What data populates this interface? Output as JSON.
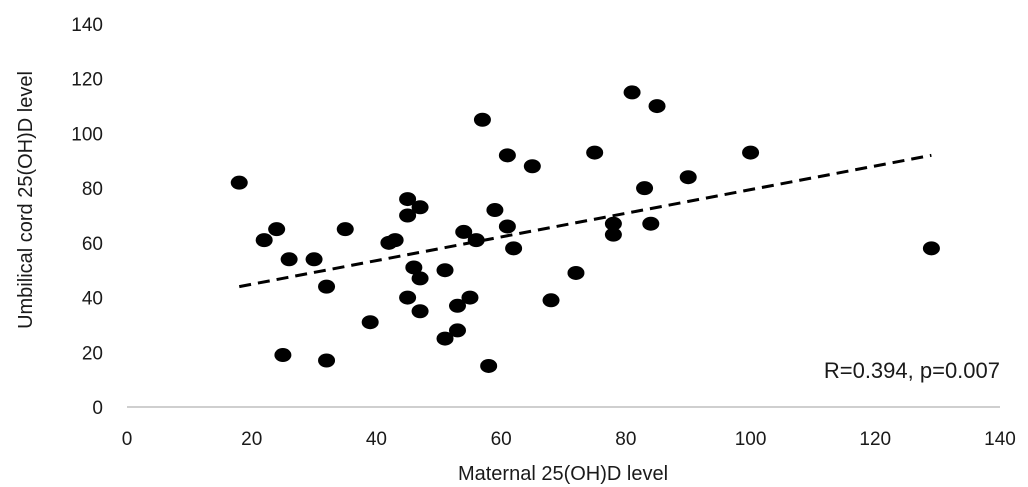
{
  "chart_data": {
    "type": "scatter",
    "title": "",
    "xlabel": "Maternal 25(OH)D level",
    "ylabel": "Umbilical cord 25(OH)D level",
    "xlim": [
      0,
      140
    ],
    "ylim": [
      0,
      140
    ],
    "xticks": [
      0,
      20,
      40,
      60,
      80,
      100,
      120,
      140
    ],
    "yticks": [
      0,
      20,
      40,
      60,
      80,
      100,
      120,
      140
    ],
    "grid": false,
    "annotation": "R=0.394, p=0.007",
    "colors": {
      "points": "#000000",
      "trendline": "#000000",
      "axis": "#bfbfbf"
    },
    "trendline": {
      "style": "dashed",
      "x": [
        18,
        129
      ],
      "y": [
        44,
        92
      ]
    },
    "series": [
      {
        "x": [
          18,
          22,
          24,
          25,
          26,
          30,
          32,
          32,
          35,
          39,
          42,
          43,
          45,
          45,
          45,
          46,
          47,
          47,
          47,
          51,
          51,
          53,
          53,
          54,
          55,
          56,
          57,
          58,
          59,
          61,
          61,
          62,
          65,
          68,
          72,
          75,
          78,
          78,
          81,
          83,
          84,
          85,
          90,
          100,
          129
        ],
        "y": [
          82,
          61,
          65,
          19,
          54,
          54,
          44,
          17,
          65,
          31,
          60,
          61,
          40,
          70,
          76,
          51,
          47,
          73,
          35,
          25,
          50,
          37,
          28,
          64,
          40,
          61,
          105,
          15,
          72,
          66,
          92,
          58,
          88,
          39,
          49,
          93,
          63,
          67,
          115,
          80,
          67,
          110,
          84,
          93,
          58
        ]
      }
    ]
  }
}
